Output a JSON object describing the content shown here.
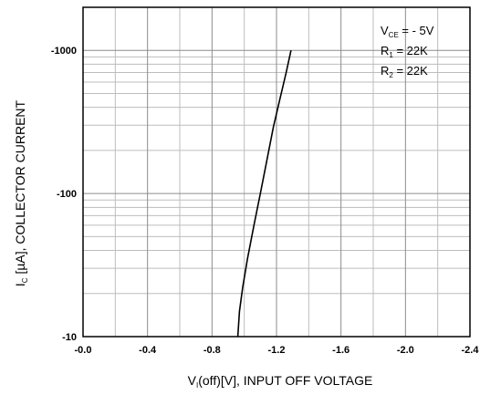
{
  "chart_data": {
    "type": "line",
    "xlabel": {
      "prefix": "V",
      "sub": "I",
      "rest": "(off)[V], INPUT OFF VOLTAGE"
    },
    "ylabel": {
      "prefix": "I",
      "sub": "C",
      "rest": " [µA], COLLECTOR CURRENT"
    },
    "x_axis": {
      "min": -0.0,
      "max": -2.4,
      "ticks": [
        -0.0,
        -0.4,
        -0.8,
        -1.2,
        -1.6,
        -2.0,
        -2.4
      ],
      "tick_labels": [
        "-0.0",
        "-0.4",
        "-0.8",
        "-1.2",
        "-1.6",
        "-2.0",
        "-2.4"
      ],
      "minor_step": -0.2
    },
    "y_axis": {
      "scale": "log",
      "min": -10,
      "max": -2000,
      "ticks": [
        -10,
        -100,
        -1000
      ],
      "tick_labels": [
        "-10",
        "-100",
        "-1000"
      ]
    },
    "grid": true,
    "annotations": [
      {
        "main": "V",
        "sub": "CE",
        "rest": " = - 5V"
      },
      {
        "main": "R",
        "sub": "1",
        "rest": " = 22K"
      },
      {
        "main": "R",
        "sub": "2",
        "rest": " = 22K"
      }
    ],
    "series": [
      {
        "color": "#000000",
        "x": [
          -0.96,
          -0.97,
          -0.99,
          -1.02,
          -1.06,
          -1.1,
          -1.14,
          -1.18,
          -1.22,
          -1.26,
          -1.29
        ],
        "y": [
          -10,
          -15,
          -22,
          -35,
          -60,
          -100,
          -170,
          -290,
          -450,
          -700,
          -1000
        ]
      }
    ]
  }
}
